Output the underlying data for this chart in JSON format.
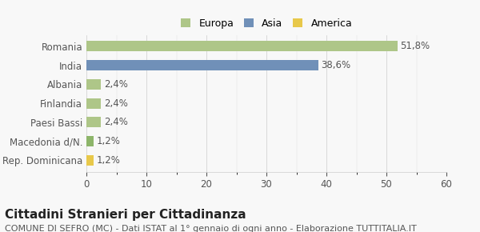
{
  "categories": [
    "Rep. Dominicana",
    "Macedonia d/N.",
    "Paesi Bassi",
    "Finlandia",
    "Albania",
    "India",
    "Romania"
  ],
  "values": [
    1.2,
    1.2,
    2.4,
    2.4,
    2.4,
    38.6,
    51.8
  ],
  "labels": [
    "1,2%",
    "1,2%",
    "2,4%",
    "2,4%",
    "2,4%",
    "38,6%",
    "51,8%"
  ],
  "colors": [
    "#e8c84a",
    "#8db56a",
    "#aec688",
    "#aec688",
    "#aec688",
    "#7090b8",
    "#aec688"
  ],
  "continent": [
    "America",
    "Europa",
    "Europa",
    "Europa",
    "Europa",
    "Asia",
    "Europa"
  ],
  "legend_labels": [
    "Europa",
    "Asia",
    "America"
  ],
  "legend_colors": [
    "#aec688",
    "#7090b8",
    "#e8c84a"
  ],
  "xlim": [
    0,
    60
  ],
  "xticks": [
    0,
    10,
    20,
    30,
    40,
    50,
    60
  ],
  "title": "Cittadini Stranieri per Cittadinanza",
  "subtitle": "COMUNE DI SEFRO (MC) - Dati ISTAT al 1° gennaio di ogni anno - Elaborazione TUTTITALIA.IT",
  "bg_color": "#f8f8f8",
  "bar_height": 0.55,
  "label_fontsize": 8.5,
  "title_fontsize": 11,
  "subtitle_fontsize": 8
}
